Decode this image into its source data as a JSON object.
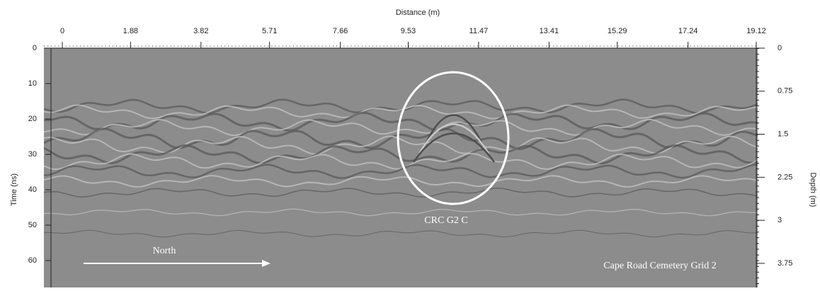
{
  "chart_data": {
    "type": "radargram",
    "x_label": "Distance (m)",
    "y_label": "Time (ns)",
    "y2_label": "Depth (m)",
    "xlim": [
      0,
      19.12
    ],
    "xticks": [
      0,
      1.88,
      3.82,
      5.71,
      7.66,
      9.53,
      11.47,
      13.41,
      15.29,
      17.24,
      19.12
    ],
    "ylim": [
      0,
      67.6
    ],
    "yticks": [
      0,
      10,
      20,
      30,
      40,
      50,
      60
    ],
    "y2lim": [
      0,
      4.17
    ],
    "y2ticks": [
      0,
      0.75,
      1.5,
      2.25,
      3,
      3.75
    ],
    "annotations": {
      "target": "CRC G2 C",
      "direction": "North",
      "site": "Cape Road Cemetery Grid 2"
    }
  }
}
